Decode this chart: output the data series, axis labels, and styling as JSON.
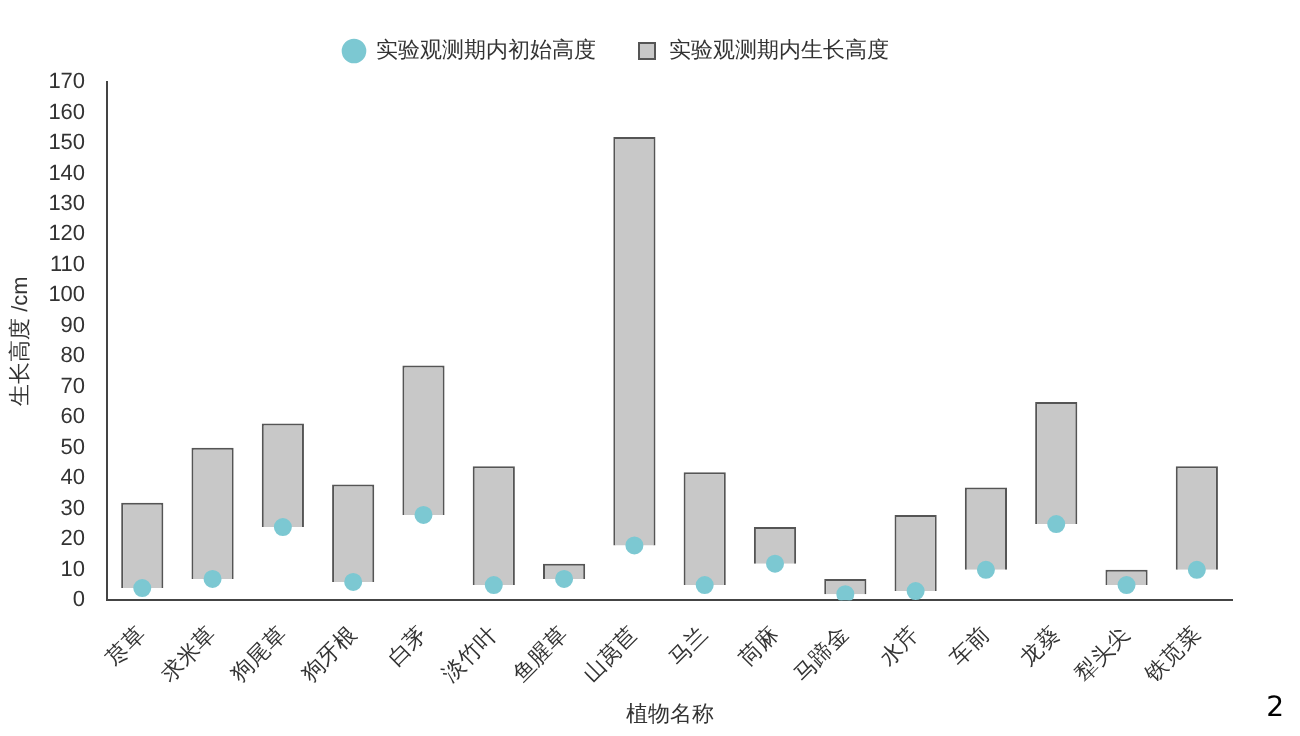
{
  "chart_data": {
    "type": "bar",
    "xlabel": "植物名称",
    "ylabel": "生长高度 /cm",
    "annotations": [
      "2"
    ],
    "categories": [
      "荩草",
      "求米草",
      "狗尾草",
      "狗牙根",
      "白茅",
      "淡竹叶",
      "鱼腥草",
      "山莴苣",
      "马兰",
      "苘麻",
      "马蹄金",
      "水芹",
      "车前",
      "龙葵",
      "犁头尖",
      "铁苋菜"
    ],
    "series": [
      {
        "name": "实验观测期内初始高度",
        "type": "scatter",
        "color": "#7cc8d2",
        "x": [
          "荩草",
          "求米草",
          "狗尾草",
          "狗牙根",
          "白茅",
          "淡竹叶",
          "鱼腥草",
          "山莴苣",
          "马兰",
          "苘麻",
          "马蹄金",
          "水芹",
          "车前",
          "龙葵",
          "犁头尖",
          "铁苋菜"
        ],
        "values": [
          4,
          7,
          24,
          6,
          28,
          5,
          7,
          18,
          5,
          12,
          2,
          3,
          10,
          25,
          5,
          10
        ]
      },
      {
        "name": "实验观测期内生长高度",
        "color": "#c8c8c8",
        "base": [
          4,
          7,
          24,
          6,
          28,
          5,
          7,
          18,
          5,
          12,
          2,
          3,
          10,
          25,
          5,
          10
        ],
        "values": [
          28,
          43,
          34,
          32,
          49,
          39,
          5,
          134,
          37,
          12,
          5,
          25,
          27,
          40,
          5,
          34
        ]
      }
    ],
    "ylim": [
      0,
      170
    ],
    "yticks": [
      0,
      10,
      20,
      30,
      40,
      50,
      60,
      70,
      80,
      90,
      100,
      110,
      120,
      130,
      140,
      150,
      160,
      170
    ],
    "grid": false,
    "legend": "top",
    "marker": "circle"
  }
}
